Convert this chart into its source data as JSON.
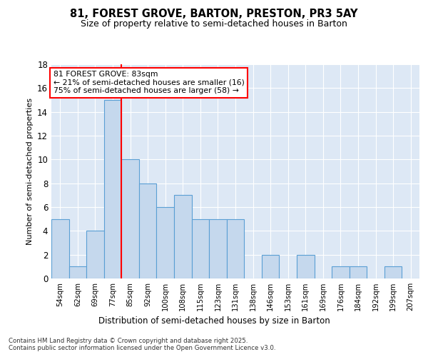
{
  "title": "81, FOREST GROVE, BARTON, PRESTON, PR3 5AY",
  "subtitle": "Size of property relative to semi-detached houses in Barton",
  "xlabel": "Distribution of semi-detached houses by size in Barton",
  "ylabel": "Number of semi-detached properties",
  "bins": [
    "54sqm",
    "62sqm",
    "69sqm",
    "77sqm",
    "85sqm",
    "92sqm",
    "100sqm",
    "108sqm",
    "115sqm",
    "123sqm",
    "131sqm",
    "138sqm",
    "146sqm",
    "153sqm",
    "161sqm",
    "169sqm",
    "176sqm",
    "184sqm",
    "192sqm",
    "199sqm",
    "207sqm"
  ],
  "values": [
    5,
    1,
    4,
    15,
    10,
    8,
    6,
    7,
    5,
    5,
    5,
    0,
    2,
    0,
    2,
    0,
    1,
    1,
    0,
    1,
    0
  ],
  "bar_color": "#c5d8ed",
  "bar_edge_color": "#5a9fd4",
  "highlight_bar_index": 4,
  "highlight_color": "#ff0000",
  "annotation_title": "81 FOREST GROVE: 83sqm",
  "annotation_line1": "← 21% of semi-detached houses are smaller (16)",
  "annotation_line2": "75% of semi-detached houses are larger (58) →",
  "ylim": [
    0,
    18
  ],
  "yticks": [
    0,
    2,
    4,
    6,
    8,
    10,
    12,
    14,
    16,
    18
  ],
  "background_color": "#dde8f5",
  "footer_line1": "Contains HM Land Registry data © Crown copyright and database right 2025.",
  "footer_line2": "Contains public sector information licensed under the Open Government Licence v3.0."
}
